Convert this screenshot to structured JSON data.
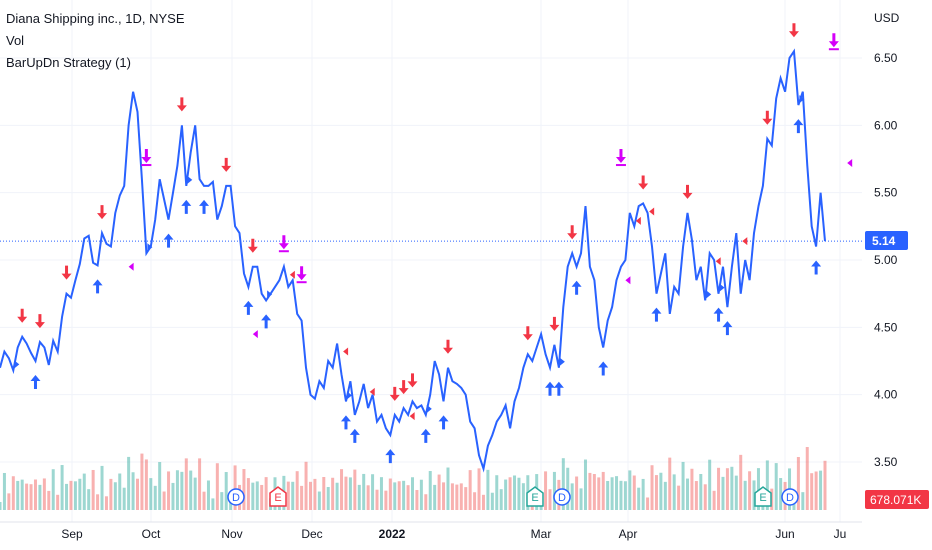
{
  "legend": {
    "title": "Diana Shipping inc., 1D, NYSE",
    "vol": "Vol",
    "strategy": "BarUpDn Strategy (1)"
  },
  "price_axis": {
    "currency": "USD",
    "ticks": [
      "6.50",
      "6.00",
      "5.50",
      "5.00",
      "4.50",
      "4.00",
      "3.50"
    ],
    "last_price": "5.14",
    "volume_label": "678.071K"
  },
  "time_axis": {
    "ticks": [
      "Sep",
      "Oct",
      "Nov",
      "Dec",
      "2022",
      "Mar",
      "Apr",
      "Jun",
      "Ju"
    ]
  },
  "colors": {
    "price_line": "#2962ff",
    "buy_arrow": "#2962ff",
    "sell_arrow": "#f23645",
    "exit_arrow": "#d500f9",
    "last_price_badge": "#2962ff",
    "volume_badge": "#f23645",
    "volume_up": "#26a69a",
    "volume_down": "#ef5350",
    "event_dividend": "#2962ff",
    "event_earnings_up": "#26a69a",
    "event_earnings_down": "#f23645"
  },
  "event_markers": [
    {
      "type": "dividend",
      "label": "D"
    },
    {
      "type": "earnings-down",
      "label": "E"
    },
    {
      "type": "earnings-up",
      "label": "E"
    },
    {
      "type": "dividend",
      "label": "D"
    },
    {
      "type": "earnings-up",
      "label": "E"
    },
    {
      "type": "dividend",
      "label": "D"
    }
  ],
  "chart_data": {
    "type": "line",
    "ylim": [
      3.3,
      6.7
    ],
    "series": [
      {
        "values": [
          4.2,
          4.32,
          4.27,
          4.18,
          4.35,
          4.43,
          4.38,
          4.31,
          4.25,
          4.39,
          4.35,
          4.22,
          4.4,
          4.32,
          4.58,
          4.75,
          4.72,
          4.85,
          4.97,
          5.16,
          5.18,
          4.98,
          4.96,
          5.2,
          5.12,
          5.1,
          5.35,
          5.48,
          5.55,
          6.0,
          6.25,
          6.1,
          5.6,
          5.05,
          5.1,
          5.3,
          5.6,
          5.45,
          5.3,
          5.5,
          5.7,
          6.0,
          5.55,
          5.8,
          6.0,
          5.6,
          5.55,
          5.55,
          5.58,
          5.3,
          5.4,
          5.55,
          5.55,
          5.25,
          5.2,
          4.9,
          4.8,
          4.95,
          4.95,
          4.75,
          4.7,
          4.75,
          4.8,
          4.85,
          4.95,
          4.8,
          4.85,
          4.6,
          4.55,
          4.2,
          4.0,
          3.97,
          4.1,
          4.05,
          4.25,
          4.2,
          4.38,
          4.15,
          3.95,
          4.1,
          3.85,
          3.95,
          4.08,
          3.9,
          4.0,
          3.8,
          3.85,
          3.75,
          3.7,
          3.85,
          3.8,
          3.9,
          3.85,
          3.95,
          3.9,
          3.92,
          3.85,
          4.0,
          4.25,
          4.15,
          3.95,
          4.2,
          4.1,
          4.08,
          4.05,
          4.0,
          3.8,
          3.75,
          3.55,
          3.45,
          3.62,
          3.7,
          3.8,
          3.85,
          3.92,
          3.75,
          3.95,
          4.05,
          4.2,
          4.3,
          4.25,
          4.35,
          4.45,
          4.3,
          4.2,
          4.37,
          4.2,
          4.65,
          4.95,
          5.05,
          4.95,
          5.05,
          5.4,
          4.95,
          4.85,
          4.5,
          4.35,
          4.55,
          4.65,
          4.85,
          4.95,
          5.0,
          5.35,
          5.25,
          5.4,
          5.42,
          5.35,
          5.1,
          4.75,
          4.9,
          5.05,
          4.6,
          4.8,
          4.75,
          5.1,
          5.35,
          5.15,
          4.85,
          4.95,
          4.7,
          5.05,
          5.0,
          4.75,
          4.95,
          4.65,
          4.95,
          5.2,
          4.75,
          5.0,
          4.85,
          5.2,
          5.4,
          5.55,
          5.9,
          5.85,
          6.2,
          6.35,
          6.25,
          6.5,
          6.55,
          6.15,
          6.25,
          5.7,
          5.25,
          5.1,
          5.5,
          5.14
        ]
      }
    ]
  }
}
